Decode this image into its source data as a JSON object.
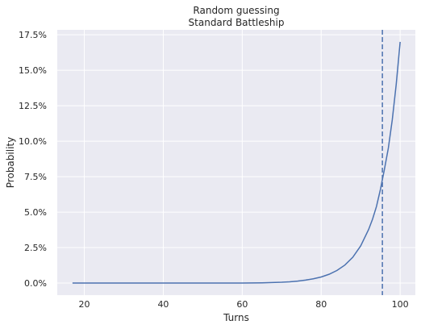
{
  "chart_data": {
    "type": "line",
    "title": "Random guessing",
    "subtitle": "Standard Battleship",
    "xlabel": "Turns",
    "ylabel": "Probability",
    "xlim": [
      13.15,
      103.85
    ],
    "ylim": [
      -0.0085,
      0.1785
    ],
    "x_ticks": [
      20,
      40,
      60,
      80,
      100
    ],
    "x_tick_labels": [
      "20",
      "40",
      "60",
      "80",
      "100"
    ],
    "y_ticks": [
      0.0,
      0.025,
      0.05,
      0.075,
      0.1,
      0.125,
      0.15,
      0.175
    ],
    "y_tick_labels": [
      "0.0%",
      "2.5%",
      "5.0%",
      "7.5%",
      "10.0%",
      "12.5%",
      "15.0%",
      "17.5%"
    ],
    "grid": true,
    "background_color": "#eaeaf2",
    "line_color": "#4c72b0",
    "series": [
      {
        "x": [
          17,
          60,
          65,
          70,
          72,
          74,
          76,
          78,
          80,
          82,
          84,
          86,
          88,
          90,
          92,
          93,
          94,
          95,
          96,
          97,
          98,
          99,
          100
        ],
        "values": [
          0.0,
          0.0,
          0.0002,
          0.0006,
          0.0009,
          0.0014,
          0.0021,
          0.003,
          0.0043,
          0.0062,
          0.0089,
          0.0127,
          0.0182,
          0.0262,
          0.0377,
          0.045,
          0.054,
          0.066,
          0.08,
          0.095,
          0.115,
          0.14,
          0.17
        ]
      }
    ],
    "vline": {
      "x": 95.5,
      "style": "dashed"
    }
  }
}
